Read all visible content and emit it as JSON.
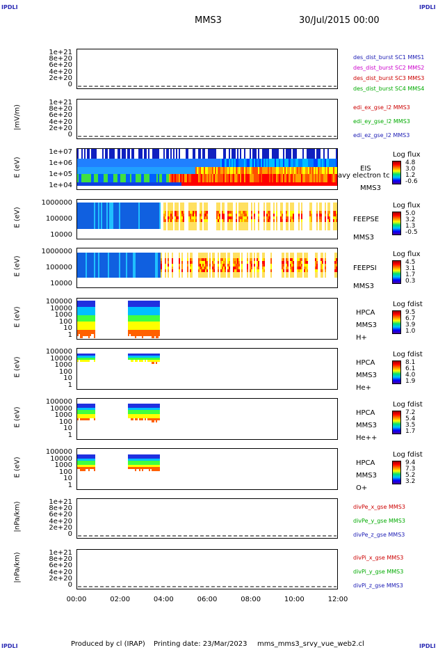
{
  "corners": {
    "tl": "IPDLI",
    "tr": "IPDLI",
    "bl": "IPDLI",
    "br": "IPDLI"
  },
  "header": {
    "mission": "MMS3",
    "date": "30/Jul/2015 00:00"
  },
  "footer": {
    "produced": "Produced by cl (IRAP)",
    "printing": "Printing date: 23/Mar/2023",
    "script": "mms_mms3_srvy_vue_web2.cl"
  },
  "x_ticks": [
    "00:00",
    "02:00",
    "04:00",
    "06:00",
    "08:00",
    "10:00",
    "12:00"
  ],
  "chart_data": [
    {
      "type": "line",
      "id": "p1",
      "y_ticks": [
        "1e+21",
        "8e+20",
        "6e+20",
        "4e+20",
        "2e+20",
        "0"
      ],
      "ylabel": "",
      "legend": [
        {
          "name": "des_dist_burst SC1 MMS1",
          "color": "#1a1ab4"
        },
        {
          "name": "des_dist_burst SC2 MMS2",
          "color": "#cc00cc"
        },
        {
          "name": "des_dist_burst SC3 MMS3",
          "color": "#cc0000"
        },
        {
          "name": "des_dist_burst SC4 MMS4",
          "color": "#00aa00"
        }
      ],
      "xlim": [
        "00:00",
        "12:00"
      ],
      "ylim": [
        0,
        1e+21
      ],
      "series": []
    },
    {
      "type": "line",
      "id": "p2",
      "y_ticks": [
        "1e+21",
        "8e+20",
        "6e+20",
        "4e+20",
        "2e+20",
        "0"
      ],
      "ylabel": "|mV/m)",
      "legend": [
        {
          "name": "edi_ex_gse_l2 MMS3",
          "color": "#cc0000"
        },
        {
          "name": "edi_ey_gse_l2 MMS3",
          "color": "#00aa00"
        },
        {
          "name": "edi_ez_gse_l2 MMS3",
          "color": "#1a1ab4"
        }
      ],
      "xlim": [
        "00:00",
        "12:00"
      ],
      "ylim": [
        0,
        1e+21
      ],
      "series": []
    },
    {
      "type": "heatmap",
      "id": "p3",
      "y_ticks": [
        "1e+07",
        "1e+06",
        "1e+05",
        "1e+04"
      ],
      "ylabel": "E (eV)",
      "labels": [
        "EIS",
        "avy electron tc",
        "MMS3"
      ],
      "colorbar": {
        "title": "Log flux",
        "values": [
          "4.8",
          "3.0",
          "1.2",
          "-0.6"
        ]
      }
    },
    {
      "type": "heatmap",
      "id": "p4",
      "y_ticks": [
        "1000000",
        "100000",
        "10000"
      ],
      "ylabel": "E (eV)",
      "labels": [
        "FEEPSE",
        "MMS3"
      ],
      "colorbar": {
        "title": "Log flux",
        "values": [
          "5.0",
          "3.2",
          "1.3",
          "-0.5"
        ]
      }
    },
    {
      "type": "heatmap",
      "id": "p5",
      "y_ticks": [
        "1000000",
        "100000",
        "10000"
      ],
      "ylabel": "E (eV)",
      "labels": [
        "FEEPSI",
        "MMS3"
      ],
      "colorbar": {
        "title": "Log flux",
        "values": [
          "4.5",
          "3.1",
          "1.7",
          "0.3"
        ]
      }
    },
    {
      "type": "heatmap",
      "id": "p6",
      "y_ticks": [
        "100000",
        "10000",
        "1000",
        "100",
        "10",
        "1"
      ],
      "ylabel": "E (eV)",
      "labels": [
        "HPCA",
        "MMS3",
        "H+"
      ],
      "colorbar": {
        "title": "Log fdist",
        "values": [
          "9.5",
          "6.7",
          "3.9",
          "1.0"
        ]
      }
    },
    {
      "type": "heatmap",
      "id": "p7",
      "y_ticks": [
        "100000",
        "10000",
        "1000",
        "100",
        "10",
        "1"
      ],
      "ylabel": "E (eV)",
      "labels": [
        "HPCA",
        "MMS3",
        "He+"
      ],
      "colorbar": {
        "title": "Log fdist",
        "values": [
          "8.1",
          "6.1",
          "4.0",
          "1.9"
        ]
      }
    },
    {
      "type": "heatmap",
      "id": "p8",
      "y_ticks": [
        "100000",
        "10000",
        "1000",
        "100",
        "10",
        "1"
      ],
      "ylabel": "E (eV)",
      "labels": [
        "HPCA",
        "MMS3",
        "He++"
      ],
      "colorbar": {
        "title": "Log fdist",
        "values": [
          "7.2",
          "5.4",
          "3.5",
          "1.7"
        ]
      }
    },
    {
      "type": "heatmap",
      "id": "p9",
      "y_ticks": [
        "100000",
        "10000",
        "1000",
        "100",
        "10",
        "1"
      ],
      "ylabel": "E (eV)",
      "labels": [
        "HPCA",
        "MMS3",
        "O+"
      ],
      "colorbar": {
        "title": "Log fdist",
        "values": [
          "9.4",
          "7.3",
          "5.2",
          "3.2"
        ]
      }
    },
    {
      "type": "line",
      "id": "p10",
      "y_ticks": [
        "1e+21",
        "8e+20",
        "6e+20",
        "4e+20",
        "2e+20",
        "0"
      ],
      "ylabel": "|nPa/km)",
      "legend": [
        {
          "name": "divPe_x_gse MMS3",
          "color": "#cc0000"
        },
        {
          "name": "divPe_y_gse MMS3",
          "color": "#00aa00"
        },
        {
          "name": "divPe_z_gse MMS3",
          "color": "#1a1ab4"
        }
      ],
      "xlim": [
        "00:00",
        "12:00"
      ],
      "ylim": [
        0,
        1e+21
      ],
      "series": []
    },
    {
      "type": "line",
      "id": "p11",
      "y_ticks": [
        "1e+21",
        "8e+20",
        "6e+20",
        "4e+20",
        "2e+20",
        "0"
      ],
      "ylabel": "|nPa/km)",
      "legend": [
        {
          "name": "divPi_x_gse MMS3",
          "color": "#cc0000"
        },
        {
          "name": "divPi_y_gse MMS3",
          "color": "#00aa00"
        },
        {
          "name": "divPi_z_gse MMS3",
          "color": "#1a1ab4"
        }
      ],
      "xlim": [
        "00:00",
        "12:00"
      ],
      "ylim": [
        0,
        1e+21
      ],
      "series": []
    }
  ]
}
